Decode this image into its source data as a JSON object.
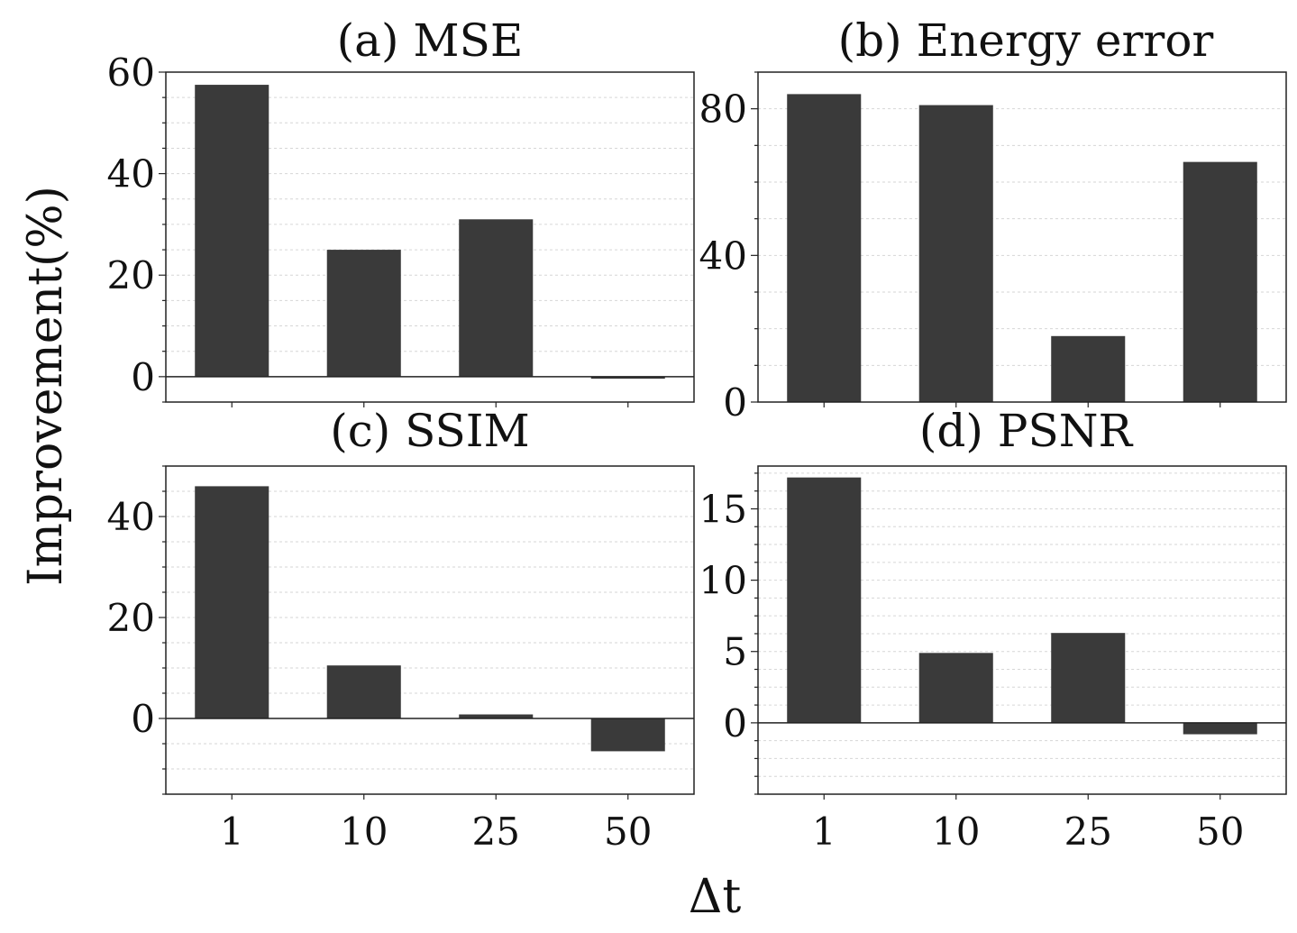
{
  "figure": {
    "xlabel": "Δt",
    "ylabel": "Improvement(%)"
  },
  "chart_data": [
    {
      "type": "bar",
      "title": "(a) MSE",
      "categories": [
        "1",
        "10",
        "25",
        "50"
      ],
      "values": [
        57.5,
        25,
        31,
        -0.4
      ],
      "ylim": [
        -5,
        60
      ],
      "yticks": [
        0,
        20,
        40,
        60
      ],
      "show_xticks": false,
      "grid": true,
      "bar_color": "#3a3a3a"
    },
    {
      "type": "bar",
      "title": "(b) Energy error",
      "categories": [
        "1",
        "10",
        "25",
        "50"
      ],
      "values": [
        84,
        81,
        18,
        65.5
      ],
      "ylim": [
        0,
        90
      ],
      "yticks": [
        0,
        40,
        80
      ],
      "show_xticks": false,
      "grid": true,
      "bar_color": "#3a3a3a"
    },
    {
      "type": "bar",
      "title": "(c) SSIM",
      "categories": [
        "1",
        "10",
        "25",
        "50"
      ],
      "values": [
        46,
        10.5,
        0.8,
        -6.5
      ],
      "ylim": [
        -15,
        50
      ],
      "yticks": [
        0,
        20,
        40
      ],
      "show_xticks": true,
      "grid": true,
      "bar_color": "#3a3a3a"
    },
    {
      "type": "bar",
      "title": "(d) PSNR",
      "categories": [
        "1",
        "10",
        "25",
        "50"
      ],
      "values": [
        17.2,
        4.9,
        6.3,
        -0.8
      ],
      "ylim": [
        -5,
        18
      ],
      "yticks": [
        0,
        5,
        10,
        15
      ],
      "show_xticks": true,
      "grid": true,
      "bar_color": "#3a3a3a"
    }
  ]
}
